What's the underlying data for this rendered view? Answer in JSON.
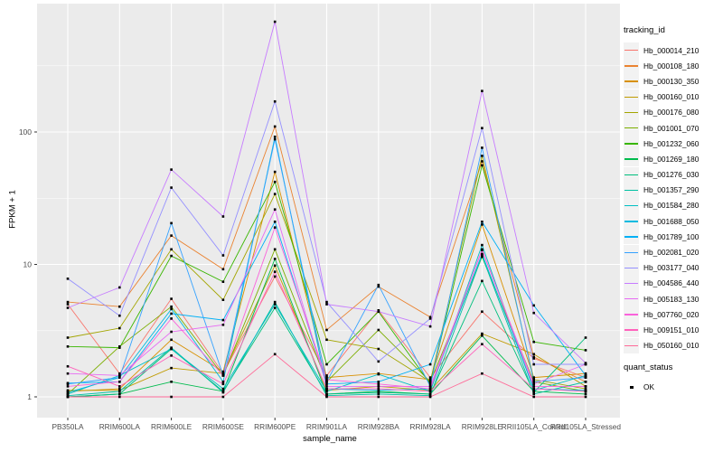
{
  "ui": {
    "panel_bg": "#EBEBEB",
    "grid_major": "#FFFFFF",
    "grid_minor": "#FFFFFF",
    "tick_label_color": "#4D4D4D",
    "axis_title_color": "#000000",
    "marker_color": "#000000"
  },
  "chart_data": {
    "type": "line",
    "xlabel": "sample_name",
    "ylabel": "FPKM + 1",
    "y_scale": "log10",
    "y_ticks": [
      1,
      10,
      100
    ],
    "y_minor_ticks": [
      3.16,
      31.6,
      316
    ],
    "ylim": [
      0.7,
      930
    ],
    "grid": "on",
    "legend_position": "right",
    "marker": "black-square",
    "categories": [
      "PB350LA",
      "RRIM600LA",
      "RRIM600LE",
      "RRIM600SE",
      "RRIM600PE",
      "RRIM901LA",
      "RRIM928BA",
      "RRIM928LA",
      "RRIM928LE",
      "RRII105LA_Control",
      "RRII105LA_Stressed"
    ],
    "legend_title": "tracking_id",
    "quant_legend": {
      "title": "quant_status",
      "items": [
        {
          "label": "OK"
        }
      ]
    },
    "series": [
      {
        "name": "Hb_000014_210",
        "color": "#F8766D",
        "values": [
          5.0,
          1.5,
          5.5,
          1.5,
          8.1,
          1.45,
          4.5,
          1.4,
          4.4,
          1.95,
          1.4
        ]
      },
      {
        "name": "Hb_000108_180",
        "color": "#EA8331",
        "values": [
          5.2,
          4.8,
          16.5,
          9.2,
          110,
          3.2,
          6.8,
          4.0,
          60,
          2.0,
          1.3
        ]
      },
      {
        "name": "Hb_000130_350",
        "color": "#D89000",
        "values": [
          1.1,
          1.15,
          2.7,
          1.55,
          50,
          1.4,
          1.5,
          1.35,
          20,
          1.4,
          1.5
        ]
      },
      {
        "name": "Hb_000160_010",
        "color": "#C09B00",
        "values": [
          1.12,
          1.12,
          1.65,
          1.5,
          9.8,
          1.12,
          1.2,
          1.12,
          3.0,
          2.1,
          1.2
        ]
      },
      {
        "name": "Hb_000176_080",
        "color": "#A3A500",
        "values": [
          2.8,
          3.3,
          13,
          5.4,
          34,
          2.7,
          2.3,
          1.3,
          66,
          1.35,
          1.15
        ]
      },
      {
        "name": "Hb_001001_070",
        "color": "#7CAE00",
        "values": [
          1.05,
          2.4,
          4.8,
          1.45,
          13,
          1.3,
          3.2,
          1.3,
          11.4,
          1.3,
          1.1
        ]
      },
      {
        "name": "Hb_001232_060",
        "color": "#39B600",
        "values": [
          2.4,
          2.35,
          11.6,
          7.4,
          42,
          1.76,
          4.4,
          1.25,
          56,
          2.6,
          2.25
        ]
      },
      {
        "name": "Hb_001269_180",
        "color": "#00BB4E",
        "values": [
          1.0,
          1.05,
          1.3,
          1.1,
          11,
          1.05,
          1.1,
          1.05,
          2.9,
          1.1,
          1.05
        ]
      },
      {
        "name": "Hb_001276_030",
        "color": "#00BF7D",
        "values": [
          1.0,
          1.05,
          2.3,
          1.1,
          4.7,
          1.05,
          1.08,
          1.05,
          7.5,
          1.08,
          2.8
        ]
      },
      {
        "name": "Hb_001357_290",
        "color": "#00C1A3",
        "values": [
          1.02,
          1.1,
          2.35,
          1.08,
          5.2,
          1.02,
          1.05,
          1.02,
          11.6,
          1.05,
          1.3
        ]
      },
      {
        "name": "Hb_001584_280",
        "color": "#00BFC4",
        "values": [
          1.05,
          1.45,
          2.3,
          1.15,
          5.0,
          1.1,
          1.48,
          1.1,
          14,
          1.12,
          1.45
        ]
      },
      {
        "name": "Hb_001688_050",
        "color": "#00BAE0",
        "values": [
          1.08,
          1.4,
          4.6,
          1.3,
          92,
          1.15,
          1.12,
          1.15,
          12,
          1.15,
          1.12
        ]
      },
      {
        "name": "Hb_001789_100",
        "color": "#00B0F6",
        "values": [
          1.27,
          1.3,
          4.25,
          3.8,
          21,
          1.25,
          1.3,
          1.76,
          21,
          4.9,
          1.45
        ]
      },
      {
        "name": "Hb_002081_020",
        "color": "#35A2FF",
        "values": [
          1.25,
          1.4,
          20.5,
          1.45,
          88,
          1.3,
          7.0,
          1.2,
          76,
          1.3,
          1.4
        ]
      },
      {
        "name": "Hb_003177_040",
        "color": "#9590FF",
        "values": [
          7.8,
          4.1,
          38,
          11.7,
          170,
          5.2,
          1.85,
          3.9,
          107,
          1.76,
          1.76
        ]
      },
      {
        "name": "Hb_004586_440",
        "color": "#C77CFF",
        "values": [
          4.7,
          6.7,
          52,
          23,
          680,
          5.0,
          4.4,
          3.4,
          204,
          4.3,
          1.8
        ]
      },
      {
        "name": "Hb_005183_130",
        "color": "#E76BF3",
        "values": [
          1.5,
          1.45,
          3.1,
          3.5,
          26,
          1.2,
          1.2,
          1.2,
          12.8,
          1.25,
          1.76
        ]
      },
      {
        "name": "Hb_007760_020",
        "color": "#FA62DB",
        "values": [
          1.2,
          1.3,
          3.9,
          1.45,
          19,
          1.35,
          1.25,
          1.15,
          13,
          1.2,
          1.2
        ]
      },
      {
        "name": "Hb_009151_010",
        "color": "#FF62BC",
        "values": [
          1.7,
          1.2,
          2.05,
          1.25,
          8.8,
          1.15,
          1.15,
          1.1,
          2.5,
          1.15,
          1.1
        ]
      },
      {
        "name": "Hb_050160_010",
        "color": "#FF6A98",
        "values": [
          1.0,
          1.0,
          1.0,
          1.0,
          2.1,
          1.0,
          1.0,
          1.0,
          1.5,
          1.0,
          1.0
        ]
      }
    ]
  }
}
